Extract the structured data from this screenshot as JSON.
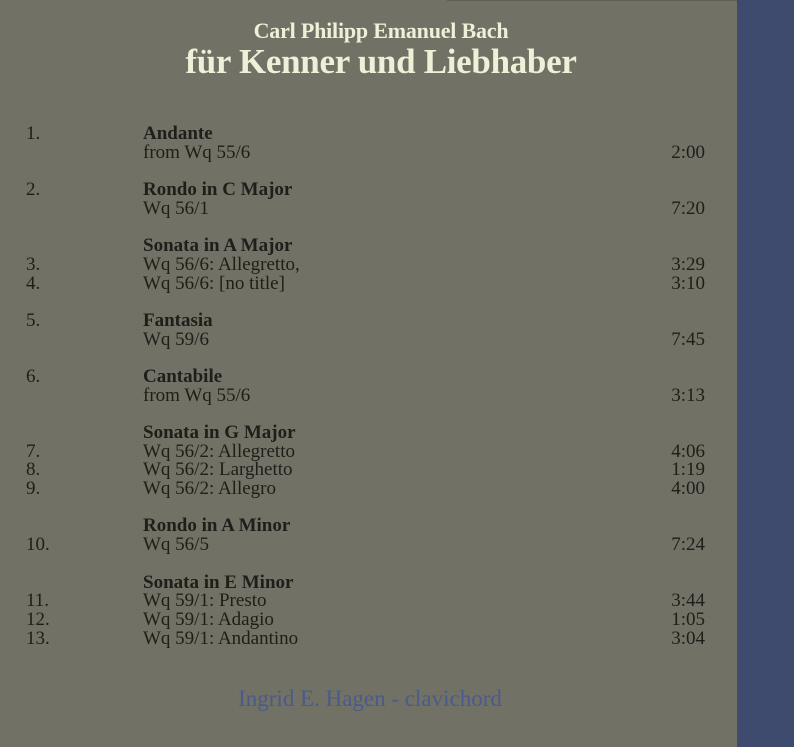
{
  "cover": {
    "composer": "Carl Philipp Emanuel Bach",
    "title": "für Kenner und Liebhaber",
    "performer": "Ingrid E. Hagen - clavichord",
    "colors": {
      "background": "#717165",
      "side_panel": "#3e4a6e",
      "title": "#eef0d8",
      "performer": "#4a5a8c"
    }
  },
  "groups": [
    {
      "num": "1.",
      "heading": "Andante",
      "tracks": [
        {
          "num": "",
          "name": "from Wq 55/6",
          "duration": "2:00"
        }
      ]
    },
    {
      "num": "2.",
      "heading": "Rondo in C Major",
      "tracks": [
        {
          "num": "",
          "name": "Wq 56/1",
          "duration": "7:20"
        }
      ]
    },
    {
      "num": "",
      "heading": "Sonata in A Major",
      "tracks": [
        {
          "num": "3.",
          "name": "Wq 56/6: Allegretto,",
          "duration": "3:29"
        },
        {
          "num": "4.",
          "name": "Wq 56/6: [no title]",
          "duration": "3:10"
        }
      ]
    },
    {
      "num": "5.",
      "heading": "Fantasia",
      "tracks": [
        {
          "num": "",
          "name": "Wq 59/6",
          "duration": "7:45"
        }
      ]
    },
    {
      "num": "6.",
      "heading": "Cantabile",
      "tracks": [
        {
          "num": "",
          "name": "from Wq 55/6",
          "duration": "3:13"
        }
      ]
    },
    {
      "num": "",
      "heading": "Sonata in G Major",
      "tracks": [
        {
          "num": "7.",
          "name": "Wq 56/2: Allegretto",
          "duration": "4:06"
        },
        {
          "num": "8.",
          "name": "Wq 56/2: Larghetto",
          "duration": "1:19"
        },
        {
          "num": "9.",
          "name": "Wq 56/2: Allegro",
          "duration": "4:00"
        }
      ]
    },
    {
      "num": "",
      "heading": "Rondo in A Minor",
      "tracks": [
        {
          "num": "10.",
          "name": "Wq 56/5",
          "duration": "7:24"
        }
      ]
    },
    {
      "num": "",
      "heading": "Sonata in E Minor",
      "tracks": [
        {
          "num": "11.",
          "name": "Wq 59/1: Presto",
          "duration": "3:44"
        },
        {
          "num": "12.",
          "name": "Wq 59/1: Adagio",
          "duration": "1:05"
        },
        {
          "num": "13.",
          "name": "Wq 59/1: Andantino",
          "duration": "3:04"
        }
      ]
    }
  ]
}
